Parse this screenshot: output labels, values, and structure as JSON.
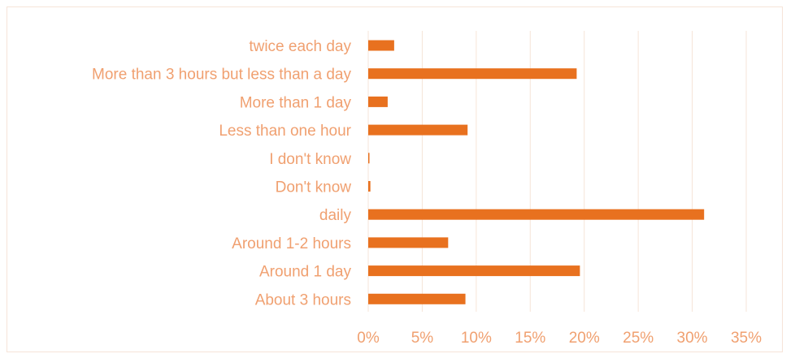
{
  "chart_data": {
    "type": "bar",
    "orientation": "horizontal",
    "categories": [
      "twice each day",
      "More than 3 hours but less than a day",
      "More than 1 day",
      "Less than one hour",
      "I don't know",
      "Don't know",
      "daily",
      "Around 1-2 hours",
      "Around 1 day",
      "About 3 hours"
    ],
    "values": [
      2.4,
      19.3,
      1.8,
      9.2,
      0.1,
      0.2,
      31.1,
      7.4,
      19.6,
      9.0
    ],
    "value_unit": "%",
    "xlim": [
      0,
      35
    ],
    "x_ticks": [
      "0%",
      "5%",
      "10%",
      "15%",
      "20%",
      "25%",
      "30%",
      "35%"
    ],
    "grid": "vertical",
    "title": "",
    "xlabel": "",
    "ylabel": ""
  },
  "colors": {
    "bar": "#e8711f",
    "label": "#f0a070",
    "grid": "#f6e4d8",
    "background": "#ffffff"
  }
}
